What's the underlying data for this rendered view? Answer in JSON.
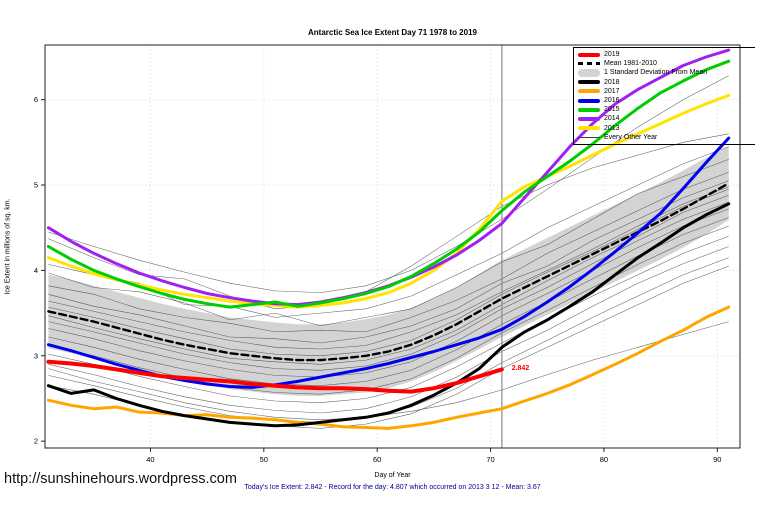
{
  "page": {
    "url_text": "http://sunshinehours.wordpress.com",
    "caption": "Today's Ice Extent: 2.842  - Record for the day: 4.807 which occurred on 2013 3 12  - Mean: 3.67"
  },
  "chart_data": {
    "type": "line",
    "title": "Antarctic Sea Ice Extent Day 71 1978 to 2019",
    "xlabel": "Day of Year",
    "ylabel": "Ice Extent in millions of sq. km.",
    "xlim": [
      30.7,
      92.0
    ],
    "ylim": [
      1.92,
      6.64
    ],
    "xticks": [
      40,
      50,
      60,
      70,
      80,
      90
    ],
    "yticks": [
      2,
      3,
      4,
      5,
      6
    ],
    "grid": "dotted",
    "grid_color": "#d9d9d9",
    "marker_line_x": 71,
    "marker_line_color": "#8a8a8a",
    "annotation": {
      "text": "2.842",
      "x": 71.6,
      "y": 2.842,
      "color": "#FF0000"
    },
    "band": {
      "name": "1 Standard Deviation From Mean",
      "color": "#D3D3D3",
      "x": [
        31,
        33,
        35,
        37,
        39,
        41,
        43,
        45,
        47,
        49,
        51,
        53,
        55,
        57,
        59,
        61,
        63,
        65,
        67,
        69,
        71,
        73,
        75,
        77,
        79,
        81,
        83,
        85,
        87,
        89,
        91
      ],
      "upper": [
        3.95,
        3.89,
        3.82,
        3.75,
        3.68,
        3.61,
        3.55,
        3.5,
        3.45,
        3.42,
        3.39,
        3.37,
        3.37,
        3.39,
        3.43,
        3.48,
        3.56,
        3.67,
        3.8,
        3.96,
        4.12,
        4.25,
        4.38,
        4.51,
        4.64,
        4.77,
        4.9,
        5.03,
        5.17,
        5.32,
        5.45
      ],
      "lower": [
        3.09,
        3.03,
        2.98,
        2.91,
        2.84,
        2.77,
        2.71,
        2.66,
        2.61,
        2.58,
        2.55,
        2.53,
        2.53,
        2.55,
        2.57,
        2.62,
        2.7,
        2.81,
        2.94,
        3.08,
        3.22,
        3.35,
        3.48,
        3.61,
        3.74,
        3.87,
        4.0,
        4.13,
        4.27,
        4.42,
        4.59
      ]
    },
    "series": [
      {
        "name": "Mean 1981-2010",
        "color": "#000000",
        "width": 2.4,
        "dash": "7,4",
        "x": [
          31,
          33,
          35,
          37,
          39,
          41,
          43,
          45,
          47,
          49,
          51,
          53,
          55,
          57,
          59,
          61,
          63,
          65,
          67,
          69,
          71,
          73,
          75,
          77,
          79,
          81,
          83,
          85,
          87,
          89,
          91
        ],
        "y": [
          3.52,
          3.46,
          3.4,
          3.33,
          3.26,
          3.19,
          3.13,
          3.08,
          3.03,
          3.0,
          2.97,
          2.95,
          2.95,
          2.97,
          3.0,
          3.05,
          3.13,
          3.24,
          3.37,
          3.52,
          3.67,
          3.8,
          3.93,
          4.06,
          4.19,
          4.32,
          4.45,
          4.58,
          4.72,
          4.87,
          5.02
        ]
      },
      {
        "name": "2013",
        "color": "#FFE400",
        "width": 3,
        "x": [
          31,
          33,
          35,
          37,
          39,
          41,
          43,
          45,
          47,
          49,
          51,
          53,
          55,
          57,
          59,
          61,
          63,
          65,
          67,
          69,
          71,
          73,
          75,
          77,
          79,
          81,
          83,
          85,
          87,
          89,
          91
        ],
        "y": [
          4.15,
          4.05,
          3.96,
          3.89,
          3.83,
          3.77,
          3.72,
          3.68,
          3.64,
          3.61,
          3.59,
          3.57,
          3.59,
          3.62,
          3.67,
          3.74,
          3.85,
          4.0,
          4.2,
          4.48,
          4.81,
          4.98,
          5.1,
          5.22,
          5.35,
          5.48,
          5.6,
          5.72,
          5.84,
          5.95,
          6.05
        ]
      },
      {
        "name": "2014",
        "color": "#A020F0",
        "width": 3,
        "x": [
          31,
          33,
          35,
          37,
          39,
          41,
          43,
          45,
          47,
          49,
          51,
          53,
          55,
          57,
          59,
          61,
          63,
          65,
          67,
          69,
          71,
          73,
          75,
          77,
          79,
          81,
          83,
          85,
          87,
          89,
          91
        ],
        "y": [
          4.5,
          4.34,
          4.2,
          4.08,
          3.97,
          3.88,
          3.8,
          3.73,
          3.68,
          3.64,
          3.61,
          3.6,
          3.63,
          3.68,
          3.74,
          3.82,
          3.92,
          4.04,
          4.18,
          4.35,
          4.55,
          4.85,
          5.15,
          5.45,
          5.72,
          5.95,
          6.12,
          6.26,
          6.4,
          6.5,
          6.58
        ]
      },
      {
        "name": "2015",
        "color": "#00CD00",
        "width": 3,
        "x": [
          31,
          33,
          35,
          37,
          39,
          41,
          43,
          45,
          47,
          49,
          51,
          53,
          55,
          57,
          59,
          61,
          63,
          65,
          67,
          69,
          71,
          73,
          75,
          77,
          79,
          81,
          83,
          85,
          87,
          89,
          91
        ],
        "y": [
          4.28,
          4.13,
          4.0,
          3.9,
          3.81,
          3.73,
          3.66,
          3.61,
          3.57,
          3.6,
          3.63,
          3.58,
          3.62,
          3.67,
          3.73,
          3.81,
          3.93,
          4.08,
          4.25,
          4.45,
          4.7,
          4.92,
          5.1,
          5.28,
          5.48,
          5.7,
          5.9,
          6.08,
          6.22,
          6.35,
          6.45
        ]
      },
      {
        "name": "2016",
        "color": "#0000EE",
        "width": 3,
        "x": [
          31,
          33,
          35,
          37,
          39,
          41,
          43,
          45,
          47,
          49,
          51,
          53,
          55,
          57,
          59,
          61,
          63,
          65,
          67,
          69,
          71,
          73,
          75,
          77,
          79,
          81,
          83,
          85,
          87,
          89,
          91
        ],
        "y": [
          3.13,
          3.06,
          2.98,
          2.9,
          2.83,
          2.76,
          2.71,
          2.67,
          2.64,
          2.63,
          2.66,
          2.7,
          2.75,
          2.8,
          2.85,
          2.91,
          2.98,
          3.05,
          3.13,
          3.21,
          3.31,
          3.46,
          3.63,
          3.81,
          4.01,
          4.22,
          4.44,
          4.67,
          4.96,
          5.26,
          5.55
        ]
      },
      {
        "name": "2017",
        "color": "#FFA500",
        "width": 3,
        "x": [
          31,
          33,
          35,
          37,
          39,
          41,
          43,
          45,
          47,
          49,
          51,
          53,
          55,
          57,
          59,
          61,
          63,
          65,
          67,
          69,
          71,
          73,
          75,
          77,
          79,
          81,
          83,
          85,
          87,
          89,
          91
        ],
        "y": [
          2.48,
          2.42,
          2.38,
          2.4,
          2.34,
          2.33,
          2.3,
          2.31,
          2.28,
          2.27,
          2.25,
          2.22,
          2.2,
          2.17,
          2.16,
          2.15,
          2.18,
          2.22,
          2.28,
          2.33,
          2.38,
          2.47,
          2.56,
          2.66,
          2.78,
          2.9,
          3.03,
          3.17,
          3.3,
          3.45,
          3.57
        ]
      },
      {
        "name": "2018",
        "color": "#000000",
        "width": 3,
        "x": [
          31,
          33,
          35,
          37,
          39,
          41,
          43,
          45,
          47,
          49,
          51,
          53,
          55,
          57,
          59,
          61,
          63,
          65,
          67,
          69,
          71,
          73,
          75,
          77,
          79,
          81,
          83,
          85,
          87,
          89,
          91
        ],
        "y": [
          2.65,
          2.56,
          2.6,
          2.5,
          2.42,
          2.35,
          2.3,
          2.26,
          2.22,
          2.2,
          2.18,
          2.19,
          2.22,
          2.25,
          2.28,
          2.33,
          2.42,
          2.54,
          2.68,
          2.85,
          3.1,
          3.28,
          3.42,
          3.58,
          3.75,
          3.95,
          4.15,
          4.32,
          4.5,
          4.65,
          4.78
        ]
      },
      {
        "name": "2019",
        "color": "#FF0000",
        "width": 4,
        "x": [
          31,
          33,
          35,
          37,
          39,
          41,
          43,
          45,
          47,
          49,
          51,
          53,
          55,
          57,
          59,
          61,
          63,
          65,
          67,
          69,
          71
        ],
        "y": [
          2.93,
          2.91,
          2.88,
          2.84,
          2.8,
          2.76,
          2.74,
          2.72,
          2.7,
          2.67,
          2.65,
          2.63,
          2.62,
          2.62,
          2.61,
          2.59,
          2.58,
          2.62,
          2.68,
          2.76,
          2.84
        ]
      }
    ],
    "background_series": {
      "name": "Every Other Year",
      "color": "#3f3f3f",
      "width": 0.55,
      "x": [
        31,
        35,
        39,
        43,
        47,
        51,
        55,
        59,
        63,
        67,
        71,
        75,
        79,
        83,
        87,
        91
      ],
      "lines": [
        [
          4.45,
          4.28,
          4.12,
          3.98,
          3.85,
          3.76,
          3.74,
          3.82,
          4.0,
          4.28,
          4.6,
          4.95,
          5.32,
          5.68,
          6.0,
          6.28
        ],
        [
          4.37,
          4.15,
          3.95,
          3.9,
          3.7,
          3.55,
          3.6,
          3.75,
          4.05,
          4.4,
          4.75,
          5.0,
          5.2,
          5.35,
          5.5,
          5.6
        ],
        [
          4.07,
          3.95,
          3.85,
          3.6,
          3.58,
          3.45,
          3.5,
          3.55,
          3.7,
          3.95,
          4.2,
          4.5,
          4.75,
          5.0,
          5.25,
          5.45
        ],
        [
          3.97,
          3.8,
          3.75,
          3.62,
          3.42,
          3.5,
          3.35,
          3.45,
          3.55,
          3.8,
          4.1,
          4.3,
          4.6,
          4.9,
          5.1,
          5.3
        ],
        [
          3.82,
          3.72,
          3.55,
          3.45,
          3.38,
          3.28,
          3.3,
          3.28,
          3.45,
          3.65,
          3.9,
          4.2,
          4.45,
          4.7,
          4.95,
          5.15
        ],
        [
          3.72,
          3.58,
          3.48,
          3.35,
          3.22,
          3.2,
          3.15,
          3.22,
          3.35,
          3.55,
          3.85,
          4.05,
          4.35,
          4.6,
          4.85,
          5.05
        ],
        [
          3.64,
          3.52,
          3.4,
          3.28,
          3.18,
          3.1,
          3.08,
          3.12,
          3.28,
          3.48,
          3.75,
          4.0,
          4.25,
          4.52,
          4.78,
          4.98
        ],
        [
          3.57,
          3.45,
          3.32,
          3.2,
          3.08,
          3.02,
          3.0,
          3.05,
          3.18,
          3.42,
          3.72,
          3.98,
          4.22,
          4.48,
          4.75,
          4.95
        ],
        [
          3.47,
          3.33,
          3.2,
          3.08,
          2.97,
          2.93,
          2.9,
          2.95,
          3.08,
          3.3,
          3.6,
          3.88,
          4.15,
          4.4,
          4.68,
          4.88
        ],
        [
          3.4,
          3.28,
          3.15,
          3.02,
          2.92,
          2.85,
          2.83,
          2.88,
          3.02,
          3.25,
          3.55,
          3.8,
          4.08,
          4.35,
          4.6,
          4.8
        ],
        [
          3.32,
          3.2,
          3.06,
          2.94,
          2.84,
          2.77,
          2.75,
          2.8,
          2.93,
          3.17,
          3.47,
          3.73,
          4.0,
          4.27,
          4.52,
          4.72
        ],
        [
          3.22,
          3.1,
          2.96,
          2.84,
          2.73,
          2.67,
          2.65,
          2.7,
          2.83,
          3.07,
          3.37,
          3.63,
          3.9,
          4.17,
          4.42,
          4.62
        ],
        [
          3.12,
          3.0,
          2.86,
          2.74,
          2.63,
          2.57,
          2.55,
          2.6,
          2.73,
          2.97,
          3.27,
          3.53,
          3.8,
          4.07,
          4.32,
          4.52
        ],
        [
          3.02,
          2.9,
          2.76,
          2.64,
          2.53,
          2.47,
          2.45,
          2.5,
          2.63,
          2.87,
          3.15,
          3.43,
          3.7,
          3.95,
          4.2,
          4.4
        ],
        [
          2.9,
          2.78,
          2.64,
          2.52,
          2.42,
          2.36,
          2.33,
          2.38,
          2.52,
          2.75,
          3.05,
          3.3,
          3.58,
          3.85,
          4.08,
          4.28
        ],
        [
          2.77,
          2.65,
          2.52,
          2.4,
          2.3,
          2.25,
          2.22,
          2.27,
          2.4,
          2.62,
          2.92,
          3.18,
          3.45,
          3.7,
          3.95,
          4.15
        ],
        [
          2.65,
          2.55,
          2.42,
          2.3,
          2.22,
          2.18,
          2.15,
          2.2,
          2.32,
          2.55,
          2.85,
          3.1,
          3.35,
          3.6,
          3.85,
          4.05
        ],
        [
          2.85,
          2.7,
          2.58,
          2.45,
          2.35,
          2.28,
          2.25,
          2.28,
          2.35,
          2.45,
          2.6,
          2.78,
          2.95,
          3.1,
          3.25,
          3.4
        ]
      ]
    },
    "legend": {
      "position": "top-right",
      "entries": [
        {
          "label": "2019",
          "color": "#FF0000",
          "type": "thick"
        },
        {
          "label": "Mean 1981-2010",
          "color": "#000000",
          "type": "dashed"
        },
        {
          "label": "1 Standard Deviation From Mean",
          "color": "#D3D3D3",
          "type": "band"
        },
        {
          "label": "2018",
          "color": "#000000",
          "type": "thick"
        },
        {
          "label": "2017",
          "color": "#FFA500",
          "type": "thick"
        },
        {
          "label": "2016",
          "color": "#0000EE",
          "type": "thick"
        },
        {
          "label": "2015",
          "color": "#00CD00",
          "type": "thick"
        },
        {
          "label": "2014",
          "color": "#A020F0",
          "type": "thick"
        },
        {
          "label": "2013",
          "color": "#FFE400",
          "type": "thick"
        },
        {
          "label": "Every Other Year",
          "color": "#3f3f3f",
          "type": "thin"
        }
      ]
    }
  }
}
